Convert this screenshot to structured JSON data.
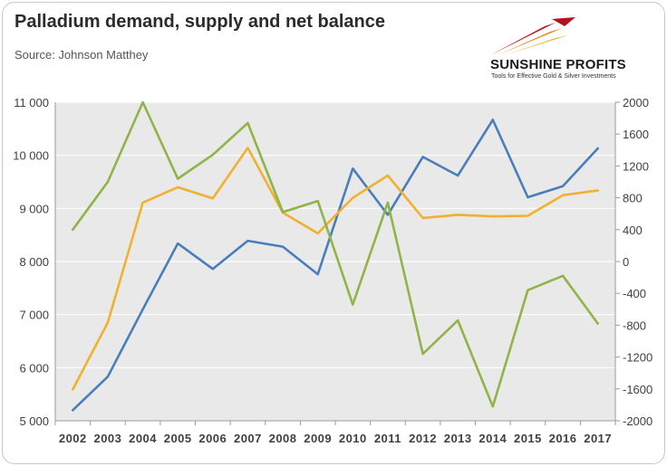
{
  "header": {
    "title": "Palladium demand, supply and net balance",
    "subtitle": "Source: Johnson Matthey"
  },
  "logo": {
    "name": "SUNSHINE PROFITS",
    "tagline": "Tools for Effective Gold & Silver Investments"
  },
  "colors": {
    "plot_background": "#e9e9e9",
    "grid": "#ffffff",
    "demand": "#4a7ebb",
    "supply": "#f0b12f",
    "net_balance": "#8fb448"
  },
  "chart_data": {
    "type": "line",
    "title": "Palladium demand, supply and net balance",
    "x": [
      "2002",
      "2003",
      "2004",
      "2005",
      "2006",
      "2007",
      "2008",
      "2009",
      "2010",
      "2011",
      "2012",
      "2013",
      "2014",
      "2015",
      "2016",
      "2017"
    ],
    "y_left": {
      "range": [
        5000,
        11000
      ],
      "ticks": [
        5000,
        6000,
        7000,
        8000,
        9000,
        10000,
        11000
      ],
      "tick_labels": [
        "5 000",
        "6 000",
        "7 000",
        "8 000",
        "9 000",
        "10 000",
        "11 000"
      ]
    },
    "y_right": {
      "range": [
        -2000,
        2000
      ],
      "ticks": [
        -2000,
        -1600,
        -1200,
        -800,
        -400,
        0,
        400,
        800,
        1200,
        1600,
        2000
      ],
      "tick_labels": [
        "-2000",
        "-1600",
        "-1200",
        "-800",
        "-400",
        "0",
        "400",
        "800",
        "1200",
        "1600",
        "2000"
      ]
    },
    "grid": true,
    "legend": "none",
    "series": [
      {
        "key": "demand",
        "axis": "left",
        "color": "#4a7ebb",
        "values": [
          5200,
          5830,
          7100,
          8340,
          7860,
          8390,
          8280,
          7760,
          9750,
          8880,
          9970,
          9620,
          10670,
          9210,
          9420,
          10130
        ]
      },
      {
        "key": "supply",
        "axis": "left",
        "color": "#f0b12f",
        "values": [
          5590,
          6850,
          9110,
          9400,
          9190,
          10140,
          8920,
          8530,
          9200,
          9620,
          8820,
          8880,
          8850,
          8860,
          9250,
          9340
        ]
      },
      {
        "key": "net_balance",
        "axis": "right",
        "color": "#8fb448",
        "values": [
          400,
          1000,
          2000,
          1040,
          1340,
          1740,
          620,
          760,
          -540,
          740,
          -1160,
          -740,
          -1820,
          -360,
          -180,
          -780
        ]
      }
    ]
  }
}
